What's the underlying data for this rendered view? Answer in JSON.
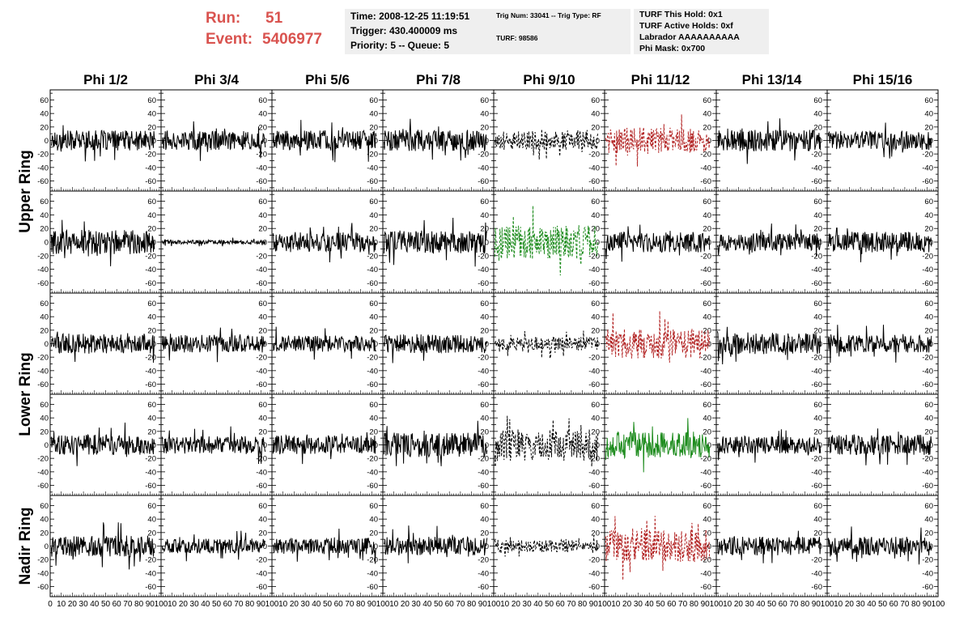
{
  "header": {
    "run_label": "Run:",
    "run_value": "51",
    "event_label": "Event:",
    "event_value": "5406977",
    "time": "Time: 2008-12-25 11:19:51",
    "trigger": "Trigger: 430.400009 ms",
    "priority": "Priority: 5 -- Queue: 5",
    "trig_num": "Trig Num: 33041 -- Trig Type: RF",
    "turf": "TURF: 98586",
    "turf_hold": "TURF This Hold: 0x1",
    "turf_active": "TURF Active Holds: 0xf",
    "labrador": "Labrador AAAAAAAAAA",
    "phi_mask": "Phi Mask: 0x700"
  },
  "colors": {
    "header_text": "#d9534f",
    "info_bg": "#efefef",
    "trace_black": "#000000",
    "trace_red": "#b22222",
    "trace_green": "#1e8c1e"
  },
  "chart_data": {
    "type": "line",
    "columns": [
      "Phi 1/2",
      "Phi 3/4",
      "Phi 5/6",
      "Phi 7/8",
      "Phi 9/10",
      "Phi 11/12",
      "Phi 13/14",
      "Phi 15/16"
    ],
    "rows": [
      "Upper Ring",
      "Upper Ring",
      "Lower Ring",
      "Lower Ring",
      "Nadir Ring"
    ],
    "row_labels": [
      {
        "text": "Upper Ring",
        "rows": [
          0,
          1
        ]
      },
      {
        "text": "Lower Ring",
        "rows": [
          2,
          3
        ]
      },
      {
        "text": "Nadir Ring",
        "rows": [
          4
        ]
      }
    ],
    "xlim": [
      0,
      100
    ],
    "ylim": [
      -75,
      75
    ],
    "y_ticks": [
      -60,
      -40,
      -20,
      0,
      20,
      40,
      60
    ],
    "x_ticks": [
      0,
      10,
      20,
      30,
      40,
      50,
      60,
      70,
      80,
      90,
      100
    ],
    "x_tick_labels": [
      "0",
      "10",
      "20",
      "30",
      "40",
      "50",
      "60",
      "70",
      "80",
      "90",
      "100"
    ],
    "trace_x_range": [
      1,
      94
    ],
    "panels": [
      {
        "row": 0,
        "col": 0,
        "color": "black",
        "style": "solid",
        "amplitude": 15
      },
      {
        "row": 0,
        "col": 1,
        "color": "black",
        "style": "solid",
        "amplitude": 14
      },
      {
        "row": 0,
        "col": 2,
        "color": "black",
        "style": "solid",
        "amplitude": 15
      },
      {
        "row": 0,
        "col": 3,
        "color": "black",
        "style": "solid",
        "amplitude": 16
      },
      {
        "row": 0,
        "col": 4,
        "color": "black",
        "style": "dashed",
        "amplitude": 14
      },
      {
        "row": 0,
        "col": 5,
        "color": "red",
        "style": "dashed",
        "amplitude": 20
      },
      {
        "row": 0,
        "col": 6,
        "color": "black",
        "style": "solid",
        "amplitude": 16
      },
      {
        "row": 0,
        "col": 7,
        "color": "black",
        "style": "solid",
        "amplitude": 14
      },
      {
        "row": 1,
        "col": 0,
        "color": "black",
        "style": "solid",
        "amplitude": 18
      },
      {
        "row": 1,
        "col": 1,
        "color": "black",
        "style": "solid",
        "amplitude": 3
      },
      {
        "row": 1,
        "col": 2,
        "color": "black",
        "style": "solid",
        "amplitude": 15
      },
      {
        "row": 1,
        "col": 3,
        "color": "black",
        "style": "solid",
        "amplitude": 17
      },
      {
        "row": 1,
        "col": 4,
        "color": "green",
        "style": "dashed",
        "amplitude": 25
      },
      {
        "row": 1,
        "col": 5,
        "color": "black",
        "style": "solid",
        "amplitude": 15
      },
      {
        "row": 1,
        "col": 6,
        "color": "black",
        "style": "solid",
        "amplitude": 13
      },
      {
        "row": 1,
        "col": 7,
        "color": "black",
        "style": "solid",
        "amplitude": 15
      },
      {
        "row": 2,
        "col": 0,
        "color": "black",
        "style": "solid",
        "amplitude": 15
      },
      {
        "row": 2,
        "col": 1,
        "color": "black",
        "style": "solid",
        "amplitude": 13
      },
      {
        "row": 2,
        "col": 2,
        "color": "black",
        "style": "solid",
        "amplitude": 12
      },
      {
        "row": 2,
        "col": 3,
        "color": "black",
        "style": "solid",
        "amplitude": 14
      },
      {
        "row": 2,
        "col": 4,
        "color": "black",
        "style": "dashed",
        "amplitude": 10
      },
      {
        "row": 2,
        "col": 5,
        "color": "red",
        "style": "dashed",
        "amplitude": 22
      },
      {
        "row": 2,
        "col": 6,
        "color": "black",
        "style": "solid",
        "amplitude": 16
      },
      {
        "row": 2,
        "col": 7,
        "color": "black",
        "style": "solid",
        "amplitude": 13
      },
      {
        "row": 3,
        "col": 0,
        "color": "black",
        "style": "solid",
        "amplitude": 15
      },
      {
        "row": 3,
        "col": 1,
        "color": "black",
        "style": "solid",
        "amplitude": 13
      },
      {
        "row": 3,
        "col": 2,
        "color": "black",
        "style": "solid",
        "amplitude": 14
      },
      {
        "row": 3,
        "col": 3,
        "color": "black",
        "style": "solid",
        "amplitude": 18
      },
      {
        "row": 3,
        "col": 4,
        "color": "black",
        "style": "dashed",
        "amplitude": 24
      },
      {
        "row": 3,
        "col": 5,
        "color": "green",
        "style": "solid",
        "amplitude": 20
      },
      {
        "row": 3,
        "col": 6,
        "color": "black",
        "style": "solid",
        "amplitude": 13
      },
      {
        "row": 3,
        "col": 7,
        "color": "black",
        "style": "solid",
        "amplitude": 15
      },
      {
        "row": 4,
        "col": 0,
        "color": "black",
        "style": "solid",
        "amplitude": 16
      },
      {
        "row": 4,
        "col": 1,
        "color": "black",
        "style": "solid",
        "amplitude": 11
      },
      {
        "row": 4,
        "col": 2,
        "color": "black",
        "style": "solid",
        "amplitude": 12
      },
      {
        "row": 4,
        "col": 3,
        "color": "black",
        "style": "solid",
        "amplitude": 14
      },
      {
        "row": 4,
        "col": 4,
        "color": "black",
        "style": "dashed",
        "amplitude": 9
      },
      {
        "row": 4,
        "col": 5,
        "color": "red",
        "style": "dashed",
        "amplitude": 24
      },
      {
        "row": 4,
        "col": 6,
        "color": "black",
        "style": "solid",
        "amplitude": 14
      },
      {
        "row": 4,
        "col": 7,
        "color": "black",
        "style": "solid",
        "amplitude": 14
      }
    ]
  }
}
